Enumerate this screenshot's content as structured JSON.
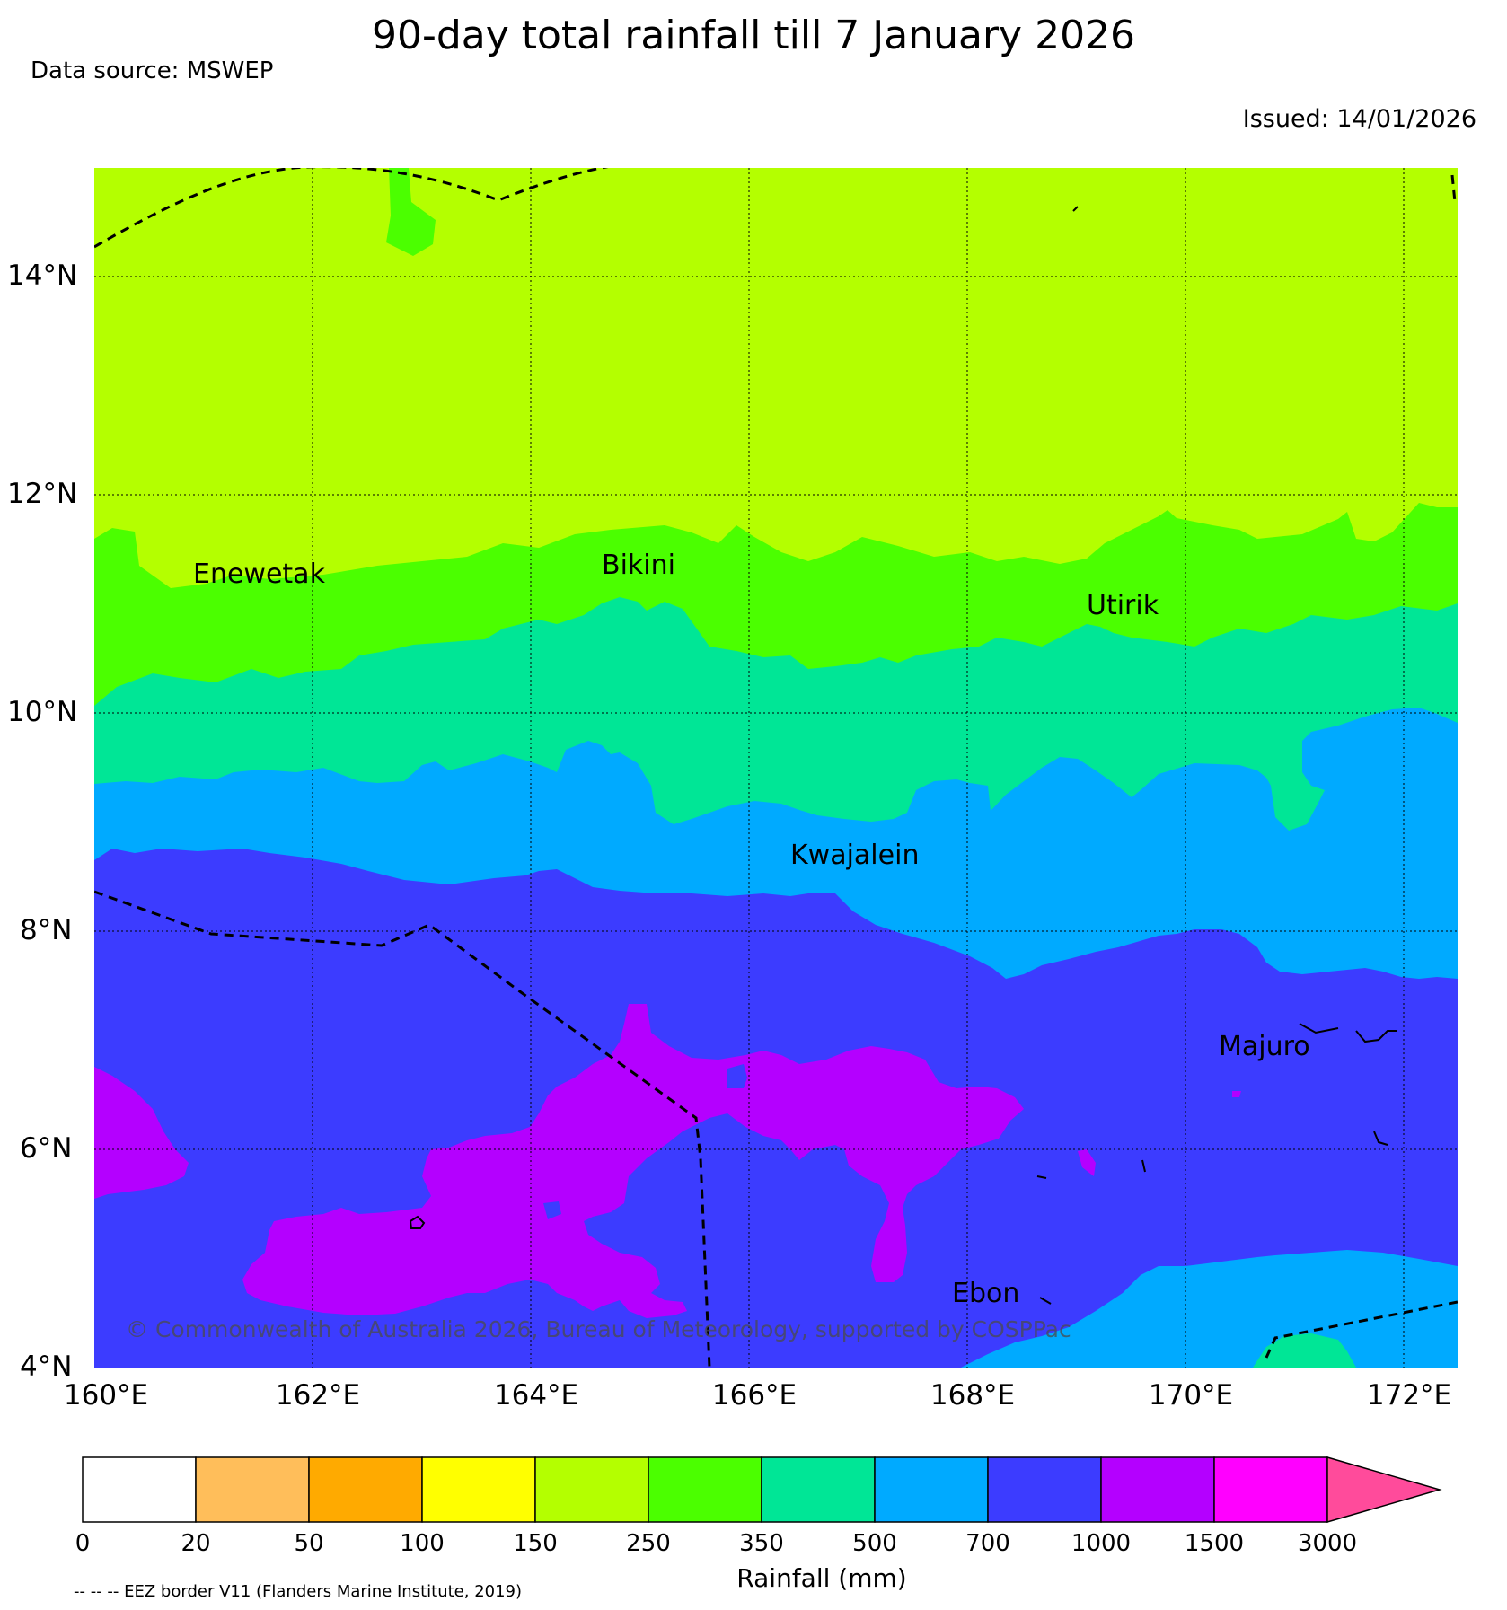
{
  "title": "90-day total rainfall till 7 January 2026",
  "data_source": "Data source: MSWEP",
  "issued": "Issued: 14/01/2026",
  "lat_labels": [
    "14°N",
    "12°N",
    "10°N",
    "8°N",
    "6°N",
    "4°N"
  ],
  "lon_labels": [
    "160°E",
    "162°E",
    "164°E",
    "166°E",
    "168°E",
    "170°E",
    "172°E"
  ],
  "places": {
    "enewetak": "Enewetak",
    "bikini": "Bikini",
    "utirik": "Utirik",
    "kwajalein": "Kwajalein",
    "majuro": "Majuro",
    "ebon": "Ebon"
  },
  "copyright": "© Commonwealth of Australia 2026, Bureau of Meteorology, supported by COSPPac",
  "colorbar": {
    "title": "Rainfall (mm)",
    "ticks": [
      "0",
      "20",
      "50",
      "100",
      "150",
      "250",
      "350",
      "500",
      "700",
      "1000",
      "1500",
      "3000"
    ],
    "colors": [
      "#ffffff",
      "#ffbe5a",
      "#ffaa00",
      "#ffff00",
      "#b4ff00",
      "#4bff00",
      "#00e696",
      "#00aaff",
      "#3c3cff",
      "#b400ff",
      "#ff00ff",
      "#ff4b9b"
    ]
  },
  "eez_note": "-- -- -- EEZ border V11 (Flanders Marine Institute, 2019)"
}
